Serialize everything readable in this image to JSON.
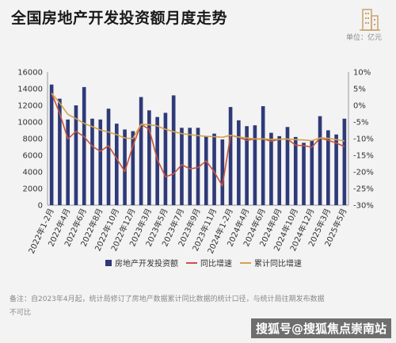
{
  "title": "全国房地产开发投资额月度走势",
  "unit": "单位：亿元",
  "footnote": "备注：自2023年4月起，统计局修订了房地产数据累计同比数据的统计口径，与统计局往期发布数据不可比",
  "watermark": "搜狐号@搜狐焦点崇南站",
  "colors": {
    "bar": "#2e3a78",
    "yoy": "#c8553d",
    "cum": "#d4a24c"
  },
  "icons": {
    "logo": "building-icon"
  },
  "chart_data": {
    "type": "bar",
    "categories": [
      "2022年1-2月",
      "2022年3月",
      "2022年4月",
      "2022年5月",
      "2022年6月",
      "2022年7月",
      "2022年8月",
      "2022年9月",
      "2022年10月",
      "2022年11月",
      "2022年12月",
      "2023年1-2月",
      "2023年3月",
      "2023年4月",
      "2023年5月",
      "2023年6月",
      "2023年7月",
      "2023年8月",
      "2023年9月",
      "2023年10月",
      "2023年11月",
      "2023年12月",
      "2024年1-2月",
      "2024年3月",
      "2024年4月",
      "2024年5月",
      "2024年6月",
      "2024年7月",
      "2024年8月",
      "2024年9月",
      "2024年10月",
      "2024年11月",
      "2024年12月",
      "2025年1-2月",
      "2025年3月",
      "2025年4月",
      "2025年5月"
    ],
    "x_tick_labels": [
      "2022年1-2月",
      "2022年4月",
      "2022年6月",
      "2022年8月",
      "2022年10月",
      "2022年12月",
      "2023年3月",
      "2023年5月",
      "2023年7月",
      "2023年9月",
      "2023年11月",
      "2024年1-2月",
      "2024年4月",
      "2024年6月",
      "2024年8月",
      "2024年10月",
      "2024年12月",
      "2025年3月",
      "2025年5月"
    ],
    "series": [
      {
        "name": "房地产开发投资额",
        "type": "bar",
        "axis": "left",
        "values": [
          14500,
          12800,
          10300,
          12000,
          14200,
          10400,
          10300,
          11600,
          9800,
          9100,
          8900,
          13000,
          11400,
          10600,
          11100,
          13200,
          9300,
          9300,
          9300,
          8300,
          8600,
          7900,
          11800,
          10200,
          9500,
          9600,
          11900,
          8700,
          8300,
          9400,
          8200,
          7500,
          7800,
          10700,
          9000,
          8500,
          10400
        ]
      },
      {
        "name": "同比增速",
        "type": "line",
        "axis": "right",
        "values": [
          3.7,
          -2.4,
          -10.1,
          -7.8,
          -9.4,
          -12.3,
          -13.8,
          -12.1,
          -16.0,
          -19.9,
          -12.2,
          -5.7,
          -7.2,
          -16.2,
          -21.5,
          -20.6,
          -17.8,
          -19.1,
          -18.7,
          -16.7,
          -20.0,
          -24.2,
          -9.0,
          -9.6,
          -10.5,
          -10.1,
          -10.1,
          -10.8,
          -10.2,
          -10.1,
          -12.0,
          -12.1,
          -12.6,
          -9.8,
          -10.5,
          -11.3,
          -12.4
        ]
      },
      {
        "name": "累计同比增速",
        "type": "line",
        "axis": "right",
        "values": [
          3.7,
          0.7,
          -2.7,
          -4.0,
          -5.4,
          -6.4,
          -7.4,
          -8.0,
          -8.8,
          -9.8,
          -10.0,
          -5.7,
          -5.8,
          -6.2,
          -7.2,
          -7.9,
          -8.5,
          -8.8,
          -9.1,
          -9.3,
          -9.4,
          -9.6,
          -9.0,
          -9.5,
          -9.8,
          -10.1,
          -10.1,
          -10.2,
          -10.2,
          -10.1,
          -10.3,
          -10.4,
          -10.6,
          -9.8,
          -9.9,
          -10.3,
          -10.7
        ]
      }
    ],
    "left_axis": {
      "ylim": [
        0,
        16000
      ],
      "ticks": [
        "0",
        "2000",
        "4000",
        "6000",
        "8000",
        "10000",
        "12000",
        "14000",
        "16000"
      ]
    },
    "right_axis": {
      "ylim": [
        -30,
        10
      ],
      "ticks": [
        "-30%",
        "-25%",
        "-20%",
        "-15%",
        "-10%",
        "-5%",
        "0%",
        "5%",
        "10%"
      ]
    },
    "legend_position": "bottom",
    "grid": false
  }
}
